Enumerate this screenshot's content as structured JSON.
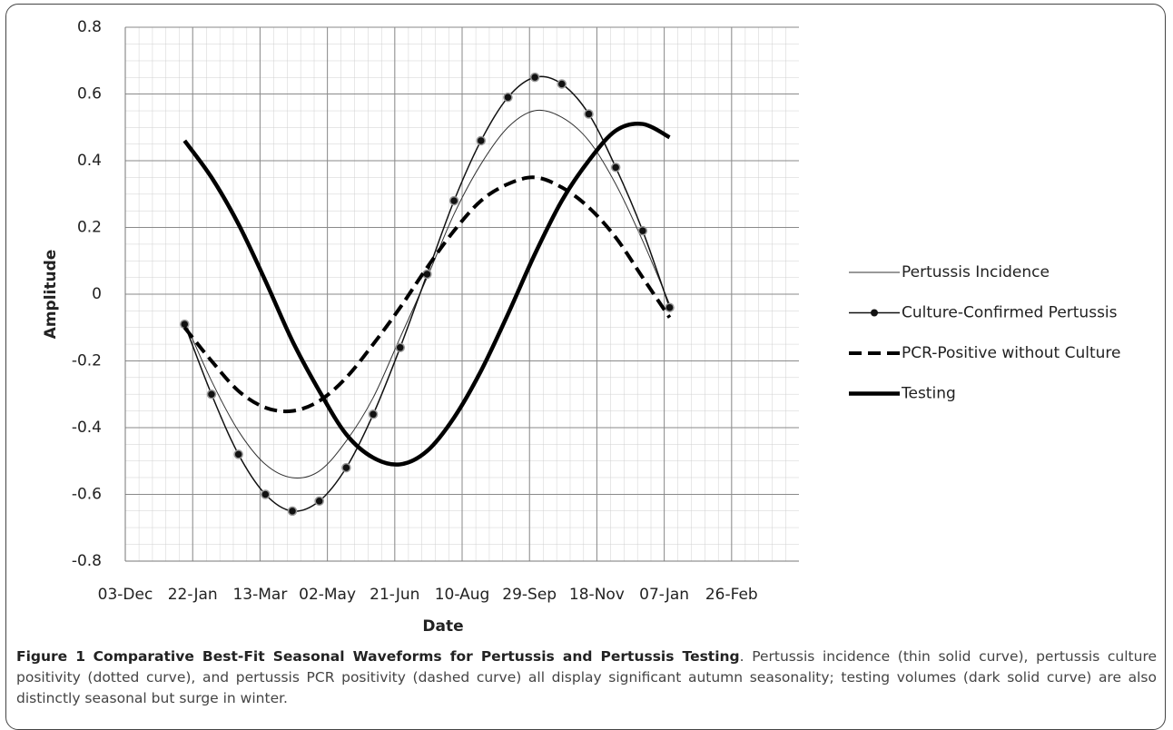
{
  "chart_data": {
    "type": "line",
    "y_label": "Amplitude",
    "x_label": "Date",
    "xlim": [
      0,
      500
    ],
    "xticks": [
      {
        "value": 0,
        "label": "03-Dec"
      },
      {
        "value": 50,
        "label": "22-Jan"
      },
      {
        "value": 100,
        "label": "13-Mar"
      },
      {
        "value": 150,
        "label": "02-May"
      },
      {
        "value": 200,
        "label": "21-Jun"
      },
      {
        "value": 250,
        "label": "10-Aug"
      },
      {
        "value": 300,
        "label": "29-Sep"
      },
      {
        "value": 350,
        "label": "18-Nov"
      },
      {
        "value": 400,
        "label": "07-Jan"
      },
      {
        "value": 450,
        "label": "26-Feb"
      }
    ],
    "ylim": [
      -0.8,
      0.8
    ],
    "yticks": [
      -0.8,
      -0.6,
      -0.4,
      -0.2,
      0,
      0.2,
      0.4,
      0.6,
      0.8
    ],
    "grid": true,
    "legend": "right",
    "x": [
      44,
      64,
      84,
      104,
      124,
      144,
      164,
      184,
      204,
      224,
      244,
      264,
      284,
      304,
      324,
      344,
      364,
      384,
      404
    ],
    "series": [
      {
        "name": "Pertussis Incidence",
        "color": "#333333",
        "line_width": 1,
        "dashed": false,
        "markers": false,
        "values": [
          -0.08,
          -0.26,
          -0.41,
          -0.51,
          -0.55,
          -0.53,
          -0.44,
          -0.31,
          -0.13,
          0.05,
          0.24,
          0.39,
          0.5,
          0.55,
          0.53,
          0.46,
          0.33,
          0.16,
          -0.03
        ]
      },
      {
        "name": "Culture-Confirmed Pertussis",
        "color": "#111111",
        "line_width": 1.5,
        "dashed": false,
        "markers": true,
        "values": [
          -0.09,
          -0.3,
          -0.48,
          -0.6,
          -0.65,
          -0.62,
          -0.52,
          -0.36,
          -0.16,
          0.06,
          0.28,
          0.46,
          0.59,
          0.65,
          0.63,
          0.54,
          0.38,
          0.19,
          -0.04
        ]
      },
      {
        "name": "PCR-Positive without Culture",
        "color": "#000000",
        "line_width": 4,
        "dashed": true,
        "markers": false,
        "values": [
          -0.1,
          -0.2,
          -0.29,
          -0.34,
          -0.35,
          -0.32,
          -0.25,
          -0.15,
          -0.04,
          0.08,
          0.19,
          0.28,
          0.33,
          0.35,
          0.32,
          0.26,
          0.17,
          0.05,
          -0.07
        ]
      },
      {
        "name": "Testing",
        "color": "#000000",
        "line_width": 4.5,
        "dashed": false,
        "markers": false,
        "values": [
          0.46,
          0.35,
          0.21,
          0.04,
          -0.14,
          -0.29,
          -0.42,
          -0.49,
          -0.51,
          -0.47,
          -0.37,
          -0.23,
          -0.06,
          0.12,
          0.28,
          0.4,
          0.49,
          0.51,
          0.47
        ]
      }
    ]
  },
  "caption": {
    "label": "Figure 1",
    "title": "Comparative Best-Fit Seasonal Waveforms for Pertussis and Pertussis Testing",
    "text": ". Pertussis incidence (thin solid curve), pertussis culture positivity (dotted curve), and pertussis PCR positivity (dashed curve) all display significant autumn seasonality; testing volumes (dark solid curve) are also distinctly seasonal but surge in winter."
  }
}
